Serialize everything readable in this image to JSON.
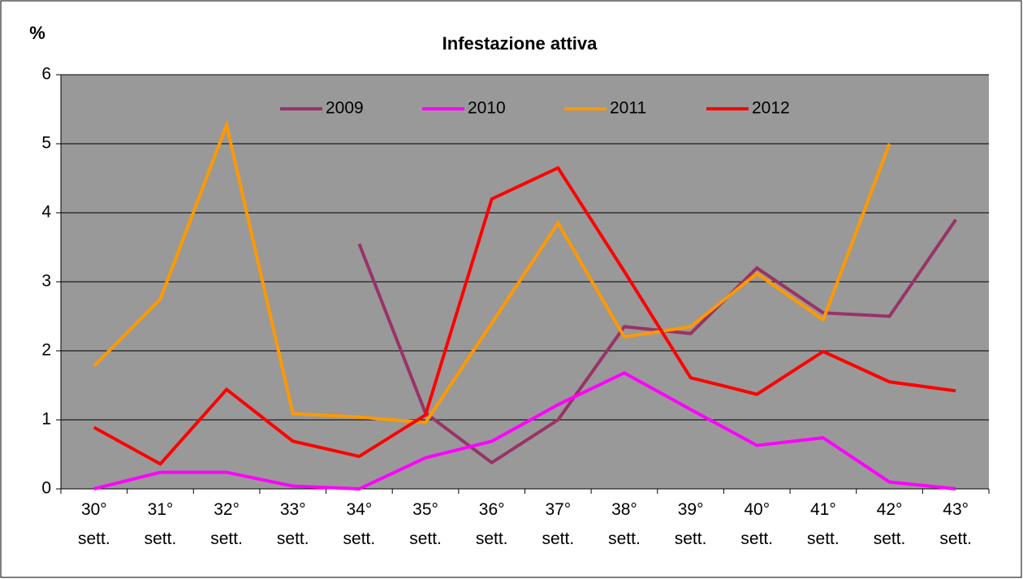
{
  "chart_data": {
    "type": "line",
    "title": "Infestazione attiva",
    "y_label": "%",
    "categories": [
      "30° sett.",
      "31° sett.",
      "32° sett.",
      "33° sett.",
      "34° sett.",
      "35° sett.",
      "36° sett.",
      "37° sett.",
      "38° sett.",
      "39° sett.",
      "40° sett.",
      "41° sett.",
      "42° sett.",
      "43° sett."
    ],
    "series": [
      {
        "name": "2009",
        "color": "#993366",
        "values": [
          null,
          null,
          null,
          null,
          3.55,
          1.1,
          0.38,
          1.0,
          2.35,
          2.25,
          3.2,
          2.55,
          2.5,
          3.9
        ]
      },
      {
        "name": "2010",
        "color": "#ff00ff",
        "values": [
          0,
          0.24,
          0.24,
          0.04,
          0,
          0.45,
          0.69,
          1.22,
          1.68,
          1.15,
          0.63,
          0.74,
          0.1,
          0
        ]
      },
      {
        "name": "2011",
        "color": "#ff9900",
        "values": [
          1.78,
          2.75,
          5.27,
          1.09,
          1.04,
          0.96,
          2.4,
          3.85,
          2.2,
          2.35,
          3.12,
          2.45,
          5.0,
          null
        ]
      },
      {
        "name": "2012",
        "color": "#ff0000",
        "values": [
          0.89,
          0.36,
          1.44,
          0.69,
          0.47,
          1.07,
          4.2,
          4.65,
          3.15,
          1.61,
          1.37,
          1.99,
          1.55,
          1.42
        ]
      }
    ],
    "ylim": [
      0,
      6
    ],
    "yticks": [
      0,
      1,
      2,
      3,
      4,
      5,
      6
    ],
    "grid": true,
    "legend": "top"
  }
}
